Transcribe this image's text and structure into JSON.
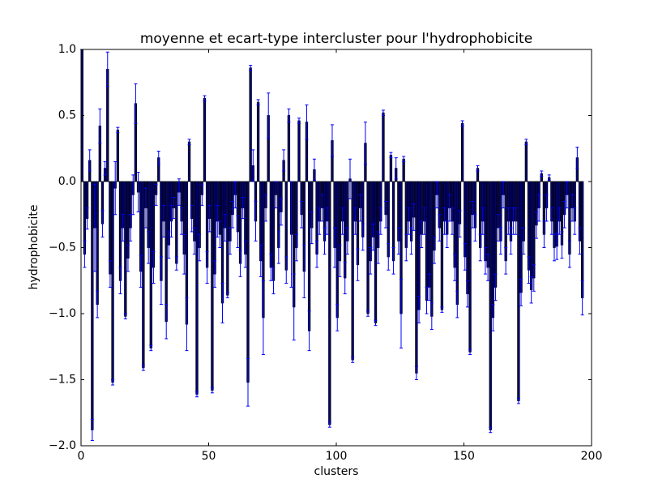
{
  "chart_data": {
    "type": "bar",
    "title": "moyenne et ecart-type intercluster pour l'hydrophobicite",
    "xlabel": "clusters",
    "ylabel": "hydrophobicite",
    "x": [
      0,
      1,
      2,
      3,
      4,
      5,
      6,
      7,
      8,
      9,
      10,
      11,
      12,
      13,
      14,
      15,
      16,
      17,
      18,
      19,
      20,
      21,
      22,
      23,
      24,
      25,
      26,
      27,
      28,
      29,
      30,
      31,
      32,
      33,
      34,
      35,
      36,
      37,
      38,
      39,
      40,
      41,
      42,
      43,
      44,
      45,
      46,
      47,
      48,
      49,
      50,
      51,
      52,
      53,
      54,
      55,
      56,
      57,
      58,
      59,
      60,
      61,
      62,
      63,
      64,
      65,
      66,
      67,
      68,
      69,
      70,
      71,
      72,
      73,
      74,
      75,
      76,
      77,
      78,
      79,
      80,
      81,
      82,
      83,
      84,
      85,
      86,
      87,
      88,
      89,
      90,
      91,
      92,
      93,
      94,
      95,
      96,
      97,
      98,
      99,
      100,
      101,
      102,
      103,
      104,
      105,
      106,
      107,
      108,
      109,
      110,
      111,
      112,
      113,
      114,
      115,
      116,
      117,
      118,
      119,
      120,
      121,
      122,
      123,
      124,
      125,
      126,
      127,
      128,
      129,
      130,
      131,
      132,
      133,
      134,
      135,
      136,
      137,
      138,
      139,
      140,
      141,
      142,
      143,
      144,
      145,
      146,
      147,
      148,
      149,
      150,
      151,
      152,
      153,
      154,
      155,
      156,
      157,
      158,
      159,
      160,
      161,
      162,
      163,
      164,
      165,
      166,
      167,
      168,
      169,
      170,
      171,
      172,
      173,
      174,
      175,
      176,
      177,
      178,
      179,
      180,
      181,
      182,
      183,
      184,
      185,
      186,
      187,
      188,
      189,
      190,
      191,
      192,
      193,
      194,
      195,
      196
    ],
    "values": [
      1.0,
      -0.55,
      -0.28,
      0.16,
      -1.88,
      -0.35,
      -0.93,
      0.42,
      -0.32,
      0.1,
      0.85,
      -0.7,
      -1.52,
      -0.05,
      0.39,
      -0.75,
      -0.35,
      -1.02,
      -0.58,
      -0.35,
      -0.1,
      0.59,
      -0.08,
      -0.68,
      -1.41,
      -0.2,
      -0.5,
      -1.26,
      -0.65,
      -0.1,
      0.18,
      -0.75,
      -0.3,
      -1.06,
      -0.48,
      -0.3,
      -0.2,
      -0.62,
      -0.08,
      -0.3,
      -0.55,
      -1.08,
      0.3,
      -0.28,
      -0.45,
      -1.61,
      -0.5,
      -0.1,
      0.63,
      -0.65,
      -0.28,
      -1.58,
      -0.7,
      -0.3,
      -0.4,
      -0.92,
      -0.35,
      -0.86,
      -0.45,
      -0.25,
      -0.1,
      -0.38,
      -0.62,
      -0.2,
      -0.55,
      -1.52,
      0.86,
      0.12,
      -0.3,
      0.6,
      -0.6,
      -1.03,
      -0.2,
      0.5,
      -0.65,
      -0.75,
      -0.1,
      -0.5,
      -0.23,
      0.16,
      -0.67,
      0.5,
      -0.4,
      -0.95,
      -0.5,
      0.46,
      -0.25,
      -0.68,
      0.45,
      -1.13,
      -0.35,
      0.09,
      -0.55,
      -0.3,
      -0.2,
      -0.45,
      -0.3,
      -1.84,
      0.31,
      -0.5,
      -1.03,
      -0.6,
      -0.3,
      -0.73,
      -0.45,
      0.02,
      -1.35,
      -0.3,
      -0.63,
      -0.2,
      -0.42,
      0.29,
      -1.0,
      -0.6,
      -0.42,
      -1.07,
      -0.5,
      -0.3,
      0.52,
      -0.25,
      -0.57,
      0.2,
      -0.6,
      0.1,
      -0.45,
      -1.0,
      0.17,
      -0.5,
      -0.3,
      -0.45,
      -0.27,
      -1.45,
      -0.97,
      -0.4,
      -0.3,
      -0.9,
      -0.8,
      -1.02,
      -0.52,
      -0.1,
      -0.35,
      -0.97,
      -0.3,
      -0.4,
      -0.2,
      -0.3,
      -0.65,
      -0.93,
      -0.32,
      0.44,
      -0.57,
      -0.85,
      -1.29,
      -0.25,
      -0.35,
      0.1,
      -0.5,
      -0.3,
      -0.6,
      -0.65,
      -1.88,
      -1.03,
      -0.8,
      -0.35,
      -0.45,
      -0.1,
      -0.6,
      -0.3,
      -0.45,
      -0.3,
      -0.3,
      -1.66,
      -0.84,
      -0.45,
      0.3,
      -0.67,
      -0.82,
      -0.73,
      -0.33,
      -0.2,
      0.06,
      -0.4,
      -0.2,
      0.03,
      -0.3,
      -0.5,
      -0.49,
      -0.3,
      -0.48,
      -0.25,
      -0.1,
      -0.55,
      -0.2,
      -0.3,
      0.18,
      -0.45,
      -0.88
    ],
    "errors": [
      0,
      0.1,
      0.08,
      0.08,
      0.08,
      0.33,
      0.1,
      0.13,
      0.1,
      0.05,
      0.13,
      0.1,
      0.02,
      0.2,
      0.02,
      0.1,
      0.1,
      0.02,
      0.1,
      0.1,
      0.15,
      0.15,
      0.15,
      0.12,
      0.02,
      0.15,
      0.12,
      0.02,
      0.12,
      0.08,
      0.05,
      0.18,
      0.12,
      0.13,
      0.1,
      0.12,
      0.08,
      0.05,
      0.1,
      0.1,
      0.15,
      0.2,
      0.02,
      0.1,
      0.1,
      0.02,
      0.1,
      0.08,
      0.02,
      0.12,
      0.1,
      0.02,
      0.1,
      0.12,
      0.1,
      0.15,
      0.1,
      0.02,
      0.1,
      0.1,
      0.1,
      0.12,
      0.1,
      0.08,
      0.1,
      0.18,
      0.02,
      0.12,
      0.15,
      0.02,
      0.12,
      0.28,
      0.1,
      0.17,
      0.1,
      0.1,
      0.1,
      0.12,
      0.1,
      0.08,
      0.1,
      0.05,
      0.4,
      0.25,
      0.1,
      0.02,
      0.1,
      0.2,
      0.13,
      0.15,
      0.12,
      0.08,
      0.1,
      0.1,
      0.1,
      0.1,
      0.1,
      0.02,
      0.12,
      0.15,
      0.1,
      0.12,
      0.1,
      0.12,
      0.1,
      0.15,
      0.02,
      0.1,
      0.12,
      0.1,
      0.1,
      0.16,
      0.02,
      0.1,
      0.1,
      0.02,
      0.12,
      0.1,
      0.02,
      0.1,
      0.1,
      0.02,
      0.1,
      0.08,
      0.1,
      0.26,
      0.02,
      0.1,
      0.1,
      0.1,
      0.1,
      0.05,
      0.1,
      0.1,
      0.1,
      0.1,
      0.1,
      0.1,
      0.1,
      0.1,
      0.1,
      0.02,
      0.1,
      0.1,
      0.1,
      0.1,
      0.1,
      0.1,
      0.1,
      0.02,
      0.1,
      0.1,
      0.02,
      0.1,
      0.1,
      0.02,
      0.1,
      0.1,
      0.1,
      0.1,
      0.02,
      0.1,
      0.1,
      0.1,
      0.1,
      0.1,
      0.1,
      0.1,
      0.1,
      0.1,
      0.1,
      0.02,
      0.1,
      0.1,
      0.02,
      0.1,
      0.1,
      0.1,
      0.1,
      0.1,
      0.02,
      0.1,
      0.1,
      0.02,
      0.1,
      0.1,
      0.1,
      0.1,
      0.1,
      0.1,
      0.1,
      0.1,
      0.1,
      0.1,
      0.08,
      0.1,
      0.13
    ],
    "bar_width": 0.8,
    "color": "#000080",
    "edgecolor": "#000000",
    "ecolor": "#0000ff",
    "xlim": [
      0,
      200
    ],
    "xticks": [
      0,
      50,
      100,
      150,
      200
    ],
    "ylim": [
      -2,
      1
    ],
    "yticks": [
      {
        "value": -2,
        "label": "−2.0"
      },
      {
        "value": -1.5,
        "label": "−1.5"
      },
      {
        "value": -1,
        "label": "−1.0"
      },
      {
        "value": -0.5,
        "label": "−0.5"
      },
      {
        "value": 0,
        "label": "0.0"
      },
      {
        "value": 0.5,
        "label": "0.5"
      },
      {
        "value": 1,
        "label": "1.0"
      }
    ]
  }
}
